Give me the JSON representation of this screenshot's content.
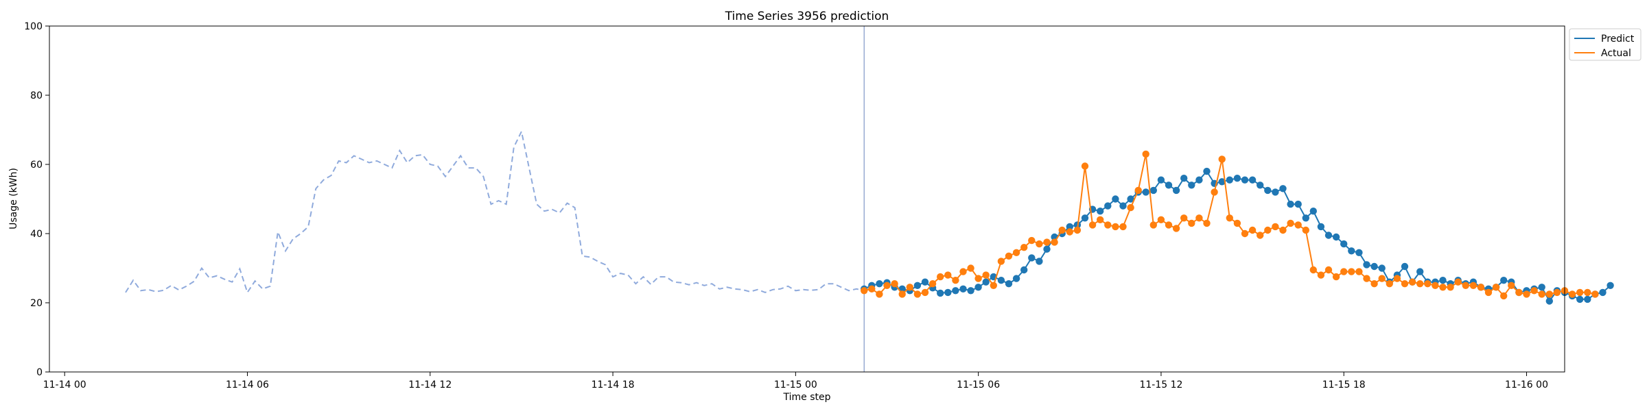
{
  "chart_data": {
    "type": "line",
    "title": "Time Series 3956 prediction",
    "xlabel": "Time step",
    "ylabel": "Usage (kWh)",
    "ylim": [
      0,
      100
    ],
    "xlim": [
      -1.0,
      98.5
    ],
    "yticks": [
      0,
      20,
      40,
      60,
      80,
      100
    ],
    "xticks": [
      {
        "x": 0,
        "label": "11-14 00"
      },
      {
        "x": 12,
        "label": "11-14 06"
      },
      {
        "x": 24,
        "label": "11-14 12"
      },
      {
        "x": 36,
        "label": "11-14 18"
      },
      {
        "x": 48,
        "label": "11-15 00"
      },
      {
        "x": 60,
        "label": "11-15 06"
      },
      {
        "x": 72,
        "label": "11-15 12"
      },
      {
        "x": 84,
        "label": "11-15 18"
      },
      {
        "x": 96,
        "label": "11-16 00"
      }
    ],
    "forecast_start_x": 52.5,
    "legend_placement": "top-right",
    "history": {
      "x_start": 4,
      "x_step": 0.5,
      "values": [
        23,
        26.5,
        23.5,
        23.8,
        23.2,
        23.6,
        25,
        23.7,
        24.8,
        26.2,
        30,
        27.2,
        27.8,
        26.8,
        26,
        29.8,
        23,
        26.3,
        24,
        24.8,
        40.5,
        35,
        38.5,
        40,
        42,
        53,
        55.5,
        56.8,
        61,
        60.5,
        62.5,
        61.5,
        60.5,
        61,
        60,
        59,
        64,
        60.5,
        62.5,
        62.8,
        60,
        59.5,
        56.5,
        59.5,
        62.5,
        59,
        59,
        56.5,
        48.5,
        49.5,
        48.5,
        65,
        69.5,
        59,
        48.5,
        46.5,
        47,
        46,
        48.8,
        47.5,
        33.5,
        33.2,
        32,
        31,
        27.5,
        28.5,
        28,
        25.5,
        27.5,
        25.3,
        27.5,
        27.5,
        26,
        25.8,
        25.2,
        25.8,
        25,
        25.5,
        24,
        24.5,
        24,
        23.8,
        23.2,
        23.8,
        23,
        23.8,
        24,
        24.8,
        23.5,
        23.8,
        23.6,
        23.8,
        25.5,
        25.5,
        24.5,
        23.5,
        24,
        23.5
      ]
    },
    "x_start": 52.5,
    "x_step": 0.5,
    "series": [
      {
        "name": "Predict",
        "color": "#1f77b4",
        "values": [
          24,
          25,
          25.5,
          25.8,
          24.5,
          24,
          23.5,
          25,
          26,
          24.3,
          22.8,
          23,
          23.5,
          24,
          23.5,
          24.5,
          26,
          27.5,
          26.5,
          25.5,
          27,
          29.5,
          33,
          32,
          35.5,
          39,
          40,
          42,
          42.5,
          44.5,
          47,
          46.5,
          48,
          50,
          48,
          50,
          52,
          52,
          52.5,
          55.5,
          54,
          52.5,
          56,
          54,
          55.5,
          58,
          54.5,
          55,
          55.5,
          56,
          55.5,
          55.5,
          54,
          52.5,
          52,
          53,
          48.5,
          48.5,
          44.5,
          46.5,
          42,
          39.5,
          39,
          37,
          35,
          34.5,
          31,
          30.5,
          30,
          26,
          28,
          30.5,
          26,
          29,
          26,
          26,
          26.5,
          25.5,
          26.5,
          25.5,
          26,
          24.5,
          24,
          24.5,
          26.5,
          26,
          23,
          23.5,
          24,
          24.5,
          20.5,
          23.5,
          23,
          22,
          21,
          21,
          22.5,
          23,
          25
        ]
      },
      {
        "name": "Actual",
        "color": "#ff7f0e",
        "values": [
          23.5,
          24,
          22.5,
          25,
          25.5,
          22.5,
          24.5,
          22.5,
          23,
          25.5,
          27.5,
          28,
          26.5,
          29,
          30,
          27,
          28,
          25,
          32,
          33.5,
          34.5,
          36,
          38,
          37,
          37.5,
          37.5,
          41,
          40.5,
          41,
          59.5,
          42.5,
          44,
          42.5,
          42,
          42,
          47.5,
          52.5,
          63,
          42.5,
          44,
          42.5,
          41.5,
          44.5,
          43,
          44.5,
          43,
          52,
          61.5,
          44.5,
          43,
          40,
          41,
          39.5,
          41,
          42,
          41,
          43,
          42.5,
          41,
          29.5,
          28,
          29.5,
          27.5,
          29,
          29,
          29,
          27,
          25.5,
          27,
          25.5,
          27,
          25.5,
          26,
          25.5,
          25.5,
          25,
          24.5,
          24.5,
          26,
          25,
          25,
          24.5,
          23,
          24.5,
          22,
          25,
          23,
          22.5,
          23.5,
          22.5,
          22.5,
          23,
          23.5,
          22.5,
          23,
          23,
          22.5
        ]
      }
    ]
  }
}
